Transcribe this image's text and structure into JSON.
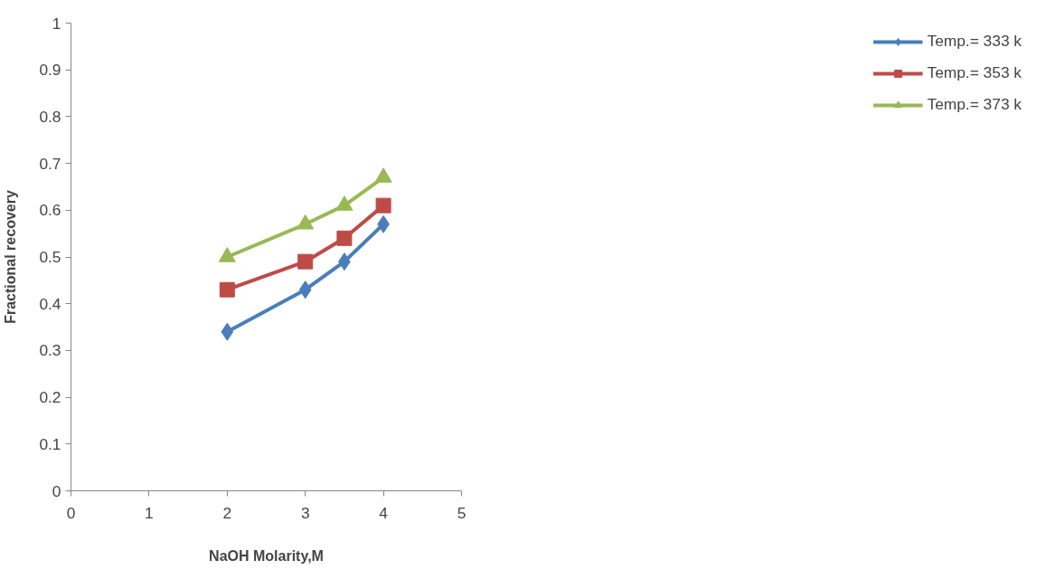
{
  "chart_data": {
    "type": "line",
    "xlabel": "NaOH Molarity,M",
    "ylabel": "Fractional recovery",
    "x": [
      2,
      3,
      3.5,
      4
    ],
    "series": [
      {
        "name": "Temp.= 333 k",
        "color": "#4a7ebb",
        "marker": "diamond",
        "values": [
          0.34,
          0.43,
          0.49,
          0.57
        ]
      },
      {
        "name": "Temp.= 353 k",
        "color": "#be4b48",
        "marker": "square",
        "values": [
          0.43,
          0.49,
          0.54,
          0.61
        ]
      },
      {
        "name": "Temp.= 373 k",
        "color": "#98b954",
        "marker": "triangle",
        "values": [
          0.5,
          0.57,
          0.61,
          0.67
        ]
      }
    ],
    "xlim": [
      0,
      5
    ],
    "xticks": [
      0,
      1,
      2,
      3,
      4,
      5
    ],
    "ylim": [
      0,
      1
    ],
    "yticks": [
      0,
      0.1,
      0.2,
      0.3,
      0.4,
      0.5,
      0.6,
      0.7,
      0.8,
      0.9,
      1
    ],
    "grid": false,
    "legend": "right",
    "line_style": "solid"
  }
}
